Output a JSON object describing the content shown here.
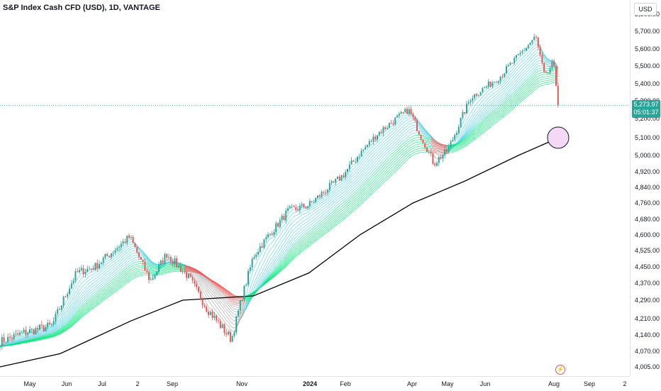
{
  "header": {
    "symbol_title": "S&P Index Cash CFD (USD), 1D, VANTAGE"
  },
  "price_axis": {
    "currency_label": "USD",
    "ticks": [
      "5,800.00",
      "5,700.00",
      "5,600.00",
      "5,500.00",
      "5,400.00",
      "5,300.00",
      "5,200.00",
      "5,100.00",
      "5,000.00",
      "4,920.00",
      "4,840.00",
      "4,760.00",
      "4,680.00",
      "4,600.00",
      "4,525.00",
      "4,450.00",
      "4,370.00",
      "4,290.00",
      "4,210.00",
      "4,140.00",
      "4,070.00",
      "4,005.00"
    ],
    "last_price": "5,273.97",
    "countdown": "05:01:37"
  },
  "time_axis": {
    "labels": [
      {
        "text": "May",
        "bold": false
      },
      {
        "text": "Jun",
        "bold": false
      },
      {
        "text": "Jul",
        "bold": false
      },
      {
        "text": "2",
        "bold": false
      },
      {
        "text": "Sep",
        "bold": false
      },
      {
        "text": "Nov",
        "bold": false
      },
      {
        "text": "2024",
        "bold": true
      },
      {
        "text": "Feb",
        "bold": false
      },
      {
        "text": "Apr",
        "bold": false
      },
      {
        "text": "May",
        "bold": false
      },
      {
        "text": "Jun",
        "bold": false
      },
      {
        "text": "Aug",
        "bold": false
      },
      {
        "text": "Sep",
        "bold": false
      },
      {
        "text": "2",
        "bold": false
      }
    ]
  },
  "colors": {
    "up_candle": "#26a69a",
    "down_candle": "#ef5350",
    "ribbon_bull": "#00e676",
    "ribbon_cool": "#4dd0e1",
    "ribbon_bear": "#ef5350",
    "ribbon_neutral": "#9e9e9e",
    "long_ma": "#000000",
    "price_line": "#26a69a",
    "highlight_circle_fill": "#f3d9f5"
  },
  "chart_data": {
    "type": "line",
    "title": "S&P Index Cash CFD (USD), 1D, VANTAGE",
    "interval": "1D",
    "approximate_close_path": [
      {
        "x": "2023-04-10",
        "y": 4110
      },
      {
        "x": "2023-05-01",
        "y": 4150
      },
      {
        "x": "2023-05-25",
        "y": 4180
      },
      {
        "x": "2023-06-15",
        "y": 4420
      },
      {
        "x": "2023-07-01",
        "y": 4450
      },
      {
        "x": "2023-07-31",
        "y": 4590
      },
      {
        "x": "2023-08-18",
        "y": 4380
      },
      {
        "x": "2023-09-01",
        "y": 4510
      },
      {
        "x": "2023-09-20",
        "y": 4400
      },
      {
        "x": "2023-10-05",
        "y": 4260
      },
      {
        "x": "2023-10-27",
        "y": 4120
      },
      {
        "x": "2023-11-15",
        "y": 4500
      },
      {
        "x": "2023-12-15",
        "y": 4720
      },
      {
        "x": "2024-01-02",
        "y": 4750
      },
      {
        "x": "2024-01-31",
        "y": 4900
      },
      {
        "x": "2024-03-01",
        "y": 5120
      },
      {
        "x": "2024-03-28",
        "y": 5250
      },
      {
        "x": "2024-04-19",
        "y": 4960
      },
      {
        "x": "2024-05-01",
        "y": 5030
      },
      {
        "x": "2024-05-21",
        "y": 5320
      },
      {
        "x": "2024-06-15",
        "y": 5440
      },
      {
        "x": "2024-07-16",
        "y": 5670
      },
      {
        "x": "2024-07-24",
        "y": 5430
      },
      {
        "x": "2024-07-31",
        "y": 5520
      },
      {
        "x": "2024-08-05",
        "y": 5273.97
      }
    ],
    "long_ma_path": [
      {
        "x": "2023-04-10",
        "y": 4005
      },
      {
        "x": "2023-06-01",
        "y": 4060
      },
      {
        "x": "2023-08-01",
        "y": 4200
      },
      {
        "x": "2023-09-15",
        "y": 4290
      },
      {
        "x": "2023-11-15",
        "y": 4310
      },
      {
        "x": "2024-01-02",
        "y": 4420
      },
      {
        "x": "2024-02-15",
        "y": 4600
      },
      {
        "x": "2024-04-01",
        "y": 4760
      },
      {
        "x": "2024-05-15",
        "y": 4870
      },
      {
        "x": "2024-07-01",
        "y": 5000
      },
      {
        "x": "2024-08-05",
        "y": 5100
      }
    ],
    "annotation": {
      "type": "circle",
      "date": "2024-08-05",
      "price": 5100
    }
  }
}
